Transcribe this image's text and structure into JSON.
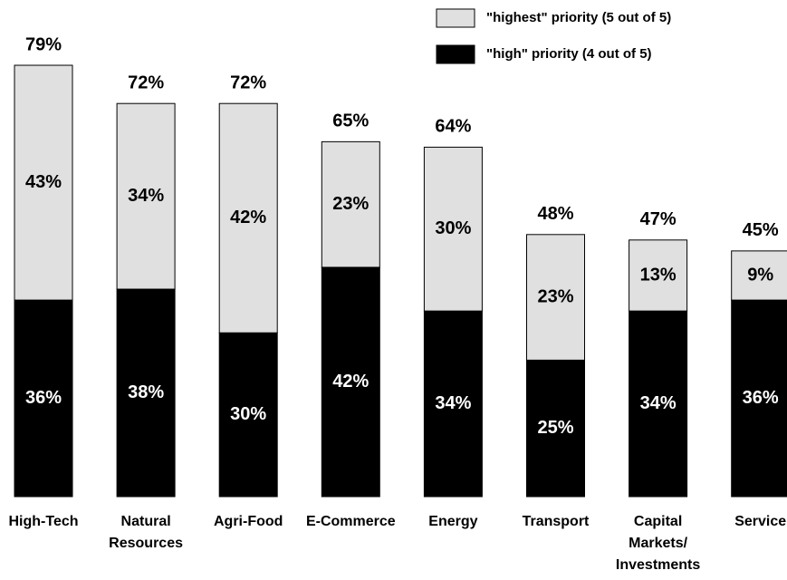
{
  "chart_data": {
    "type": "stacked_bar",
    "categories": [
      "High-Tech",
      "Natural\nResources",
      "Agri-Food",
      "E-Commerce",
      "Energy",
      "Transport",
      "Capital\nMarkets/\nInvestments",
      "Service"
    ],
    "series": [
      {
        "name": "\"high\" priority (4 out of 5)",
        "color": "#000000",
        "values": [
          36,
          38,
          30,
          42,
          34,
          25,
          34,
          36
        ],
        "value_labels": [
          "36%",
          "38%",
          "30%",
          "42%",
          "34%",
          "25%",
          "34%",
          "36%"
        ]
      },
      {
        "name": "\"highest\" priority (5 out of 5)",
        "color": "#e0e0e0",
        "values": [
          43,
          34,
          42,
          23,
          30,
          23,
          13,
          9
        ],
        "value_labels": [
          "43%",
          "34%",
          "42%",
          "23%",
          "30%",
          "23%",
          "13%",
          "9%"
        ]
      }
    ],
    "totals": [
      79,
      72,
      72,
      65,
      64,
      48,
      47,
      45
    ],
    "total_labels": [
      "79%",
      "72%",
      "72%",
      "65%",
      "64%",
      "48%",
      "47%",
      "45%"
    ],
    "ylim": [
      0,
      80
    ]
  }
}
